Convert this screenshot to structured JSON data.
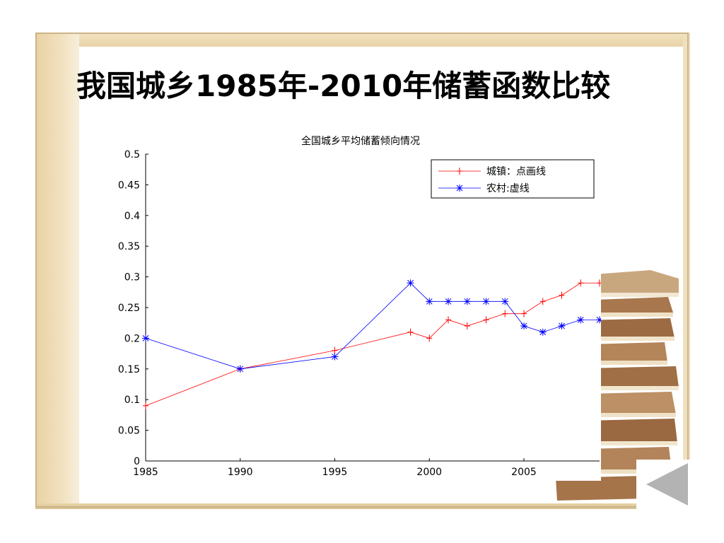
{
  "slide": {
    "title": "我国城乡1985年-2010年储蓄函数比较"
  },
  "nav": {
    "icon": "triangle-left-icon",
    "color": "#b3b3b3"
  },
  "chart_data": {
    "type": "line",
    "title": "全国城乡平均储蓄倾向情况",
    "xlabel": "",
    "ylabel": "",
    "xlim": [
      1985,
      2009
    ],
    "ylim": [
      0,
      0.5
    ],
    "xticks": [
      "1985",
      "1990",
      "1995",
      "2000",
      "2005"
    ],
    "yticks": [
      "0",
      "0.05",
      "0.1",
      "0.15",
      "0.2",
      "0.25",
      "0.3",
      "0.35",
      "0.4",
      "0.45",
      "0.5"
    ],
    "grid": false,
    "legend_position": "top-right",
    "series": [
      {
        "name": "城镇：点画线",
        "color": "#ff0000",
        "marker": "plus",
        "x": [
          1985,
          1990,
          1995,
          1999,
          2000,
          2001,
          2002,
          2003,
          2004,
          2005,
          2006,
          2007,
          2008,
          2009
        ],
        "values": [
          0.09,
          0.15,
          0.18,
          0.21,
          0.2,
          0.23,
          0.22,
          0.23,
          0.24,
          0.24,
          0.26,
          0.27,
          0.29,
          0.29
        ]
      },
      {
        "name": "农村:虚线",
        "color": "#0000ff",
        "marker": "star",
        "x": [
          1985,
          1990,
          1995,
          1999,
          2000,
          2001,
          2002,
          2003,
          2004,
          2005,
          2006,
          2007,
          2008,
          2009
        ],
        "values": [
          0.2,
          0.15,
          0.17,
          0.29,
          0.26,
          0.26,
          0.26,
          0.26,
          0.26,
          0.22,
          0.21,
          0.22,
          0.23,
          0.23
        ]
      }
    ]
  }
}
